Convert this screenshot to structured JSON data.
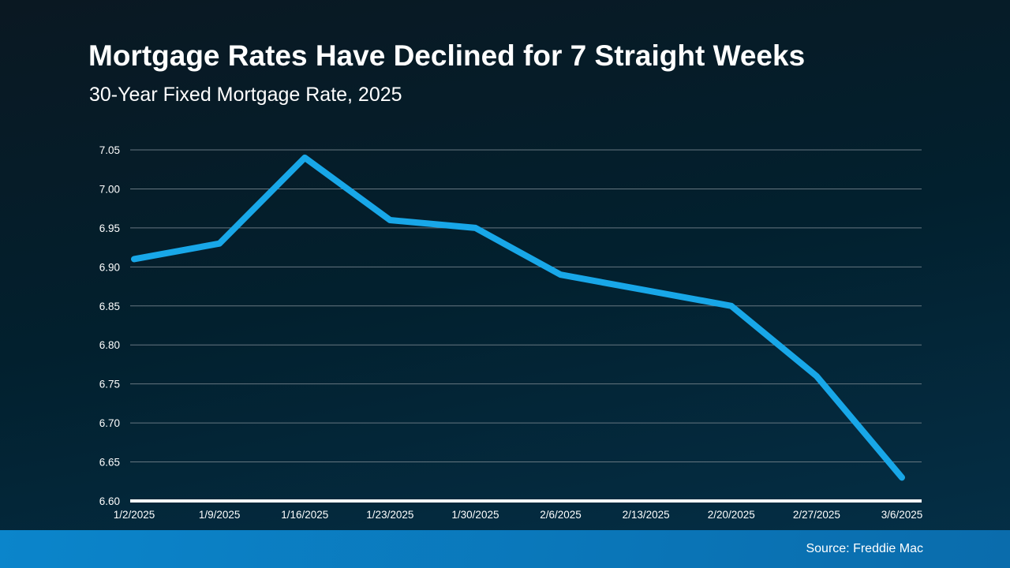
{
  "header": {
    "title": "Mortgage Rates Have Declined for 7 Straight Weeks",
    "subtitle": "30-Year Fixed Mortgage Rate, 2025"
  },
  "footer": {
    "source": "Source: Freddie Mac"
  },
  "colors": {
    "background_top": "#0a1822",
    "background_mid": "#02202e",
    "background_bottom": "#053048",
    "line": "#18a7e8",
    "gridline": "#667680",
    "axis_line": "#ffffff",
    "tick_text": "#ffffff",
    "footer_bar_left": "#0b85cb",
    "footer_bar_right": "#0a6cac"
  },
  "chart_data": {
    "type": "line",
    "title": "30-Year Fixed Mortgage Rate, 2025",
    "xlabel": "",
    "ylabel": "",
    "categories": [
      "1/2/2025",
      "1/9/2025",
      "1/16/2025",
      "1/23/2025",
      "1/30/2025",
      "2/6/2025",
      "2/13/2025",
      "2/20/2025",
      "2/27/2025",
      "3/6/2025"
    ],
    "series": [
      {
        "name": "30-Year Fixed Mortgage Rate",
        "values": [
          6.91,
          6.93,
          7.04,
          6.96,
          6.95,
          6.89,
          6.87,
          6.85,
          6.76,
          6.63
        ]
      }
    ],
    "ylim": [
      6.6,
      7.05
    ],
    "ytick_step": 0.05,
    "grid": "horizontal",
    "legend": "none"
  }
}
